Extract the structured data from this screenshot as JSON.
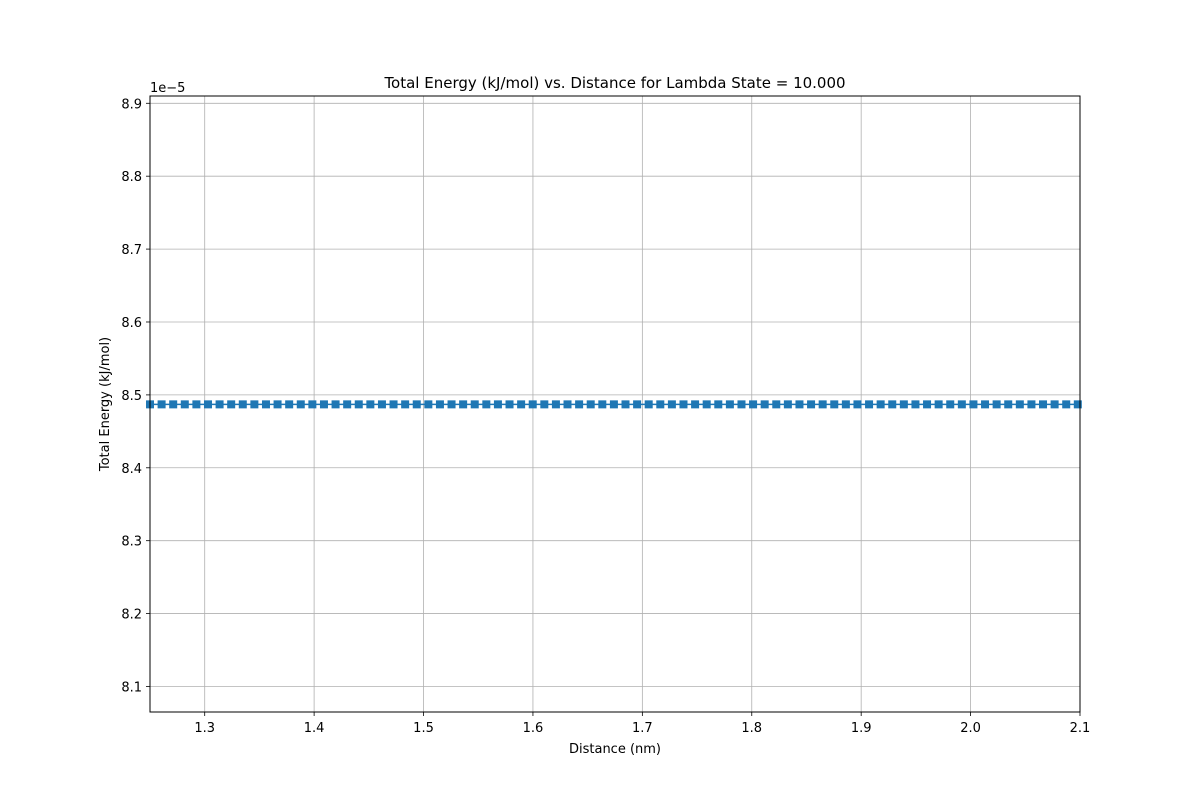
{
  "chart_data": {
    "type": "line",
    "title": "Total Energy (kJ/mol) vs. Distance for Lambda State = 10.000",
    "xlabel": "Distance (nm)",
    "ylabel": "Total Energy (kJ/mol)",
    "offset_text": "1e−5",
    "xlim": [
      1.25,
      2.1
    ],
    "ylim": [
      8.065,
      8.91
    ],
    "y_scale_exponent": -5,
    "x_ticks": [
      1.3,
      1.4,
      1.5,
      1.6,
      1.7,
      1.8,
      1.9,
      2.0,
      2.1
    ],
    "x_tick_labels": [
      "1.3",
      "1.4",
      "1.5",
      "1.6",
      "1.7",
      "1.8",
      "1.9",
      "2.0",
      "2.1"
    ],
    "y_ticks": [
      8.1,
      8.2,
      8.3,
      8.4,
      8.5,
      8.6,
      8.7,
      8.8,
      8.9
    ],
    "y_tick_labels": [
      "8.1",
      "8.2",
      "8.3",
      "8.4",
      "8.5",
      "8.6",
      "8.7",
      "8.8",
      "8.9"
    ],
    "grid": true,
    "series": [
      {
        "color": "#1f77b4",
        "marker": "square",
        "x_start": 1.25,
        "x_end": 2.1,
        "x_step": 0.0106,
        "y_constant": 8.487
      }
    ]
  }
}
